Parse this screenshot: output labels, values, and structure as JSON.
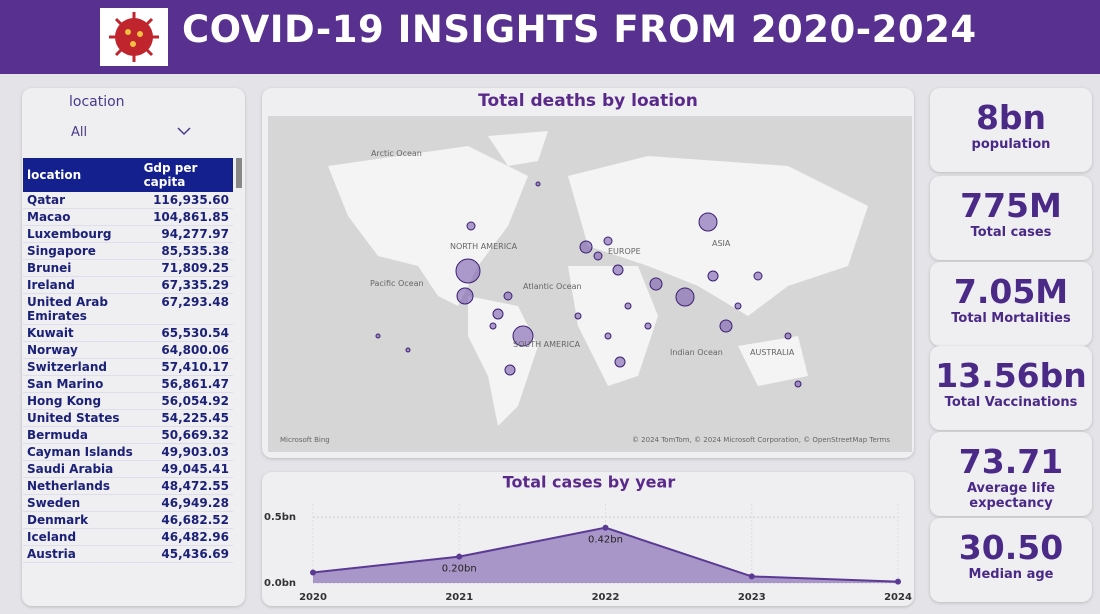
{
  "header": {
    "title": "COVID-19 INSIGHTS FROM 2020-2024"
  },
  "filter": {
    "label": "location",
    "value": "All"
  },
  "table": {
    "columns": [
      "location",
      "Gdp per capita"
    ],
    "rows": [
      [
        "Qatar",
        "116,935.60"
      ],
      [
        "Macao",
        "104,861.85"
      ],
      [
        "Luxembourg",
        "94,277.97"
      ],
      [
        "Singapore",
        "85,535.38"
      ],
      [
        "Brunei",
        "71,809.25"
      ],
      [
        "Ireland",
        "67,335.29"
      ],
      [
        "United Arab Emirates",
        "67,293.48"
      ],
      [
        "Kuwait",
        "65,530.54"
      ],
      [
        "Norway",
        "64,800.06"
      ],
      [
        "Switzerland",
        "57,410.17"
      ],
      [
        "San Marino",
        "56,861.47"
      ],
      [
        "Hong Kong",
        "56,054.92"
      ],
      [
        "United States",
        "54,225.45"
      ],
      [
        "Bermuda",
        "50,669.32"
      ],
      [
        "Cayman Islands",
        "49,903.03"
      ],
      [
        "Saudi Arabia",
        "49,045.41"
      ],
      [
        "Netherlands",
        "48,472.55"
      ],
      [
        "Sweden",
        "46,949.28"
      ],
      [
        "Denmark",
        "46,682.52"
      ],
      [
        "Iceland",
        "46,482.96"
      ],
      [
        "Austria",
        "45,436.69"
      ]
    ]
  },
  "map": {
    "title": "Total deaths by loation",
    "labels": [
      "Arctic Ocean",
      "NORTH AMERICA",
      "Pacific Ocean",
      "Atlantic Ocean",
      "EUROPE",
      "ASIA",
      "SOUTH AMERICA",
      "Indian Ocean",
      "AUSTRALIA"
    ],
    "logo": "Microsoft Bing",
    "attribution": "© 2024 TomTom, © 2024 Microsoft Corporation, © OpenStreetMap  Terms"
  },
  "cards": [
    {
      "value": "8bn",
      "label": "population"
    },
    {
      "value": "775M",
      "label": "Total cases"
    },
    {
      "value": "7.05M",
      "label": "Total Mortalities"
    },
    {
      "value": "13.56bn",
      "label": "Total Vaccinations"
    },
    {
      "value": "73.71",
      "label": "Average life expectancy"
    },
    {
      "value": "30.50",
      "label": "Median age"
    }
  ],
  "chart_data": {
    "type": "area",
    "title": "Total cases by year",
    "x": [
      2020,
      2021,
      2022,
      2023,
      2024
    ],
    "xlim": [
      2020,
      2024
    ],
    "xticks": [
      2020,
      2021,
      2022,
      2023,
      2024
    ],
    "values": [
      0.08,
      0.2,
      0.42,
      0.05,
      0.01
    ],
    "value_labels": [
      null,
      "0.20bn",
      "0.42bn",
      null,
      null
    ],
    "ylim": [
      0,
      0.6
    ],
    "yticks": [
      {
        "value": 0,
        "label": "0.0bn"
      },
      {
        "value": 0.5,
        "label": "0.5bn"
      }
    ],
    "color": "#5b3a94",
    "fill": "#a896c8",
    "grid": true
  }
}
